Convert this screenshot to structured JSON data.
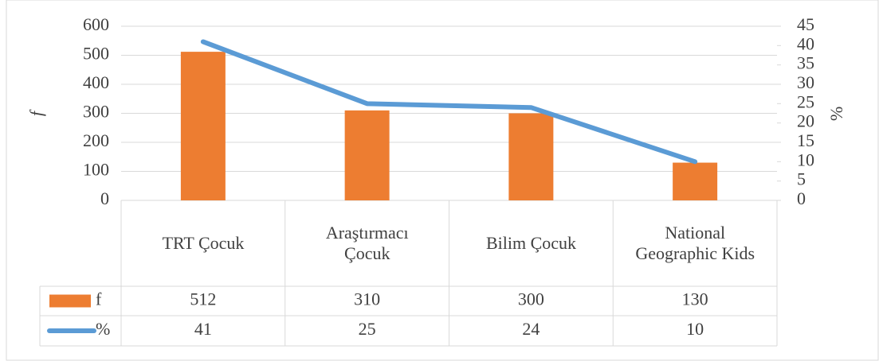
{
  "chart_data": {
    "type": "bar_line",
    "categories": [
      "TRT Çocuk",
      "Araştırmacı Çocuk",
      "Bilim Çocuk",
      "National Geographic Kids"
    ],
    "series": [
      {
        "name": "f",
        "type": "bar",
        "color": "#ed7d31",
        "values": [
          512,
          310,
          300,
          130
        ]
      },
      {
        "name": "%",
        "type": "line",
        "axis": "y2",
        "color": "#5b9bd5",
        "values": [
          41,
          25,
          24,
          10
        ]
      }
    ],
    "ylabel": "f",
    "y2label": "%",
    "ylim": [
      0,
      600
    ],
    "yticks": [
      0,
      100,
      200,
      300,
      400,
      500,
      600
    ],
    "y2lim": [
      0,
      45
    ],
    "y2ticks": [
      0,
      5,
      10,
      15,
      20,
      25,
      30,
      35,
      40,
      45
    ],
    "grid": true,
    "data_table": true
  }
}
